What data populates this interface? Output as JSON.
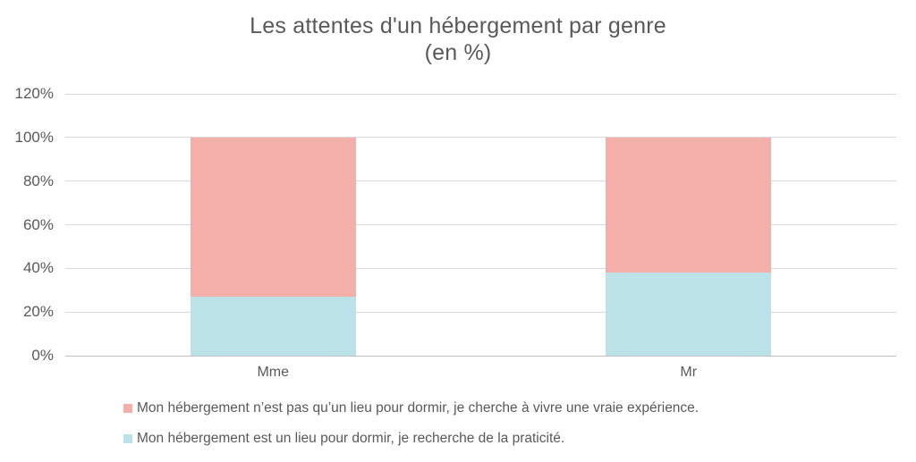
{
  "title": {
    "line1": "Les attentes d'un hébergement par genre",
    "line2": "(en %)"
  },
  "chart_data": {
    "type": "bar",
    "subtype": "stacked-100-percent",
    "title": "Les attentes d'un hébergement par genre (en %)",
    "categories": [
      "Mme",
      "Mr"
    ],
    "series": [
      {
        "name": "Mon hébergement n’est pas qu’un lieu pour dormir, je cherche à vivre une vraie expérience.",
        "color": "#F5AFAB",
        "values": [
          73,
          62
        ],
        "stack_position": "top"
      },
      {
        "name": "Mon hébergement est un lieu pour dormir, je recherche de la praticité.",
        "color": "#BAE2E7",
        "values": [
          27,
          38
        ],
        "stack_position": "bottom"
      }
    ],
    "xlabel": "",
    "ylabel": "",
    "ylim": [
      0,
      120
    ],
    "yticks": [
      "0%",
      "20%",
      "40%",
      "60%",
      "80%",
      "100%",
      "120%"
    ],
    "ytick_values": [
      0,
      20,
      40,
      60,
      80,
      100,
      120
    ],
    "grid": true,
    "legend_position": "bottom-left",
    "colors": {
      "text": "#595959",
      "gridline": "#D9D9D9",
      "axis_line": "#BFBFBF",
      "background": "#FFFFFF"
    }
  }
}
